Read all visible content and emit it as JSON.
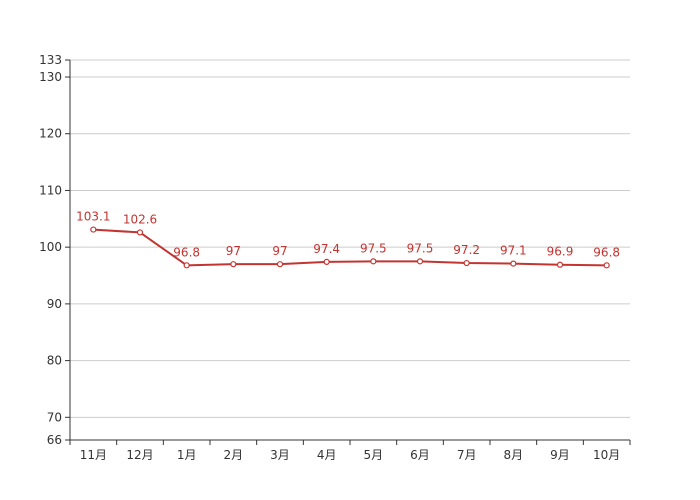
{
  "chart_data": {
    "type": "line",
    "categories": [
      "11月",
      "12月",
      "1月",
      "2月",
      "3月",
      "4月",
      "5月",
      "6月",
      "7月",
      "8月",
      "9月",
      "10月"
    ],
    "series": [
      {
        "values": [
          103.1,
          102.6,
          96.8,
          97,
          97,
          97.4,
          97.5,
          97.5,
          97.2,
          97.1,
          96.9,
          96.8
        ]
      }
    ],
    "data_labels": [
      "103.1",
      "102.6",
      "96.8",
      "97",
      "97",
      "97.4",
      "97.5",
      "97.5",
      "97.2",
      "97.1",
      "96.9",
      "96.8"
    ],
    "ylim": [
      66,
      133
    ],
    "y_ticks": [
      66,
      70,
      80,
      90,
      100,
      110,
      120,
      130,
      133
    ],
    "title": "",
    "xlabel": "",
    "ylabel": "",
    "grid": true,
    "legend": "none",
    "colors": {
      "line": "#c23531",
      "grid": "#cccccc",
      "axis": "#333333"
    }
  }
}
